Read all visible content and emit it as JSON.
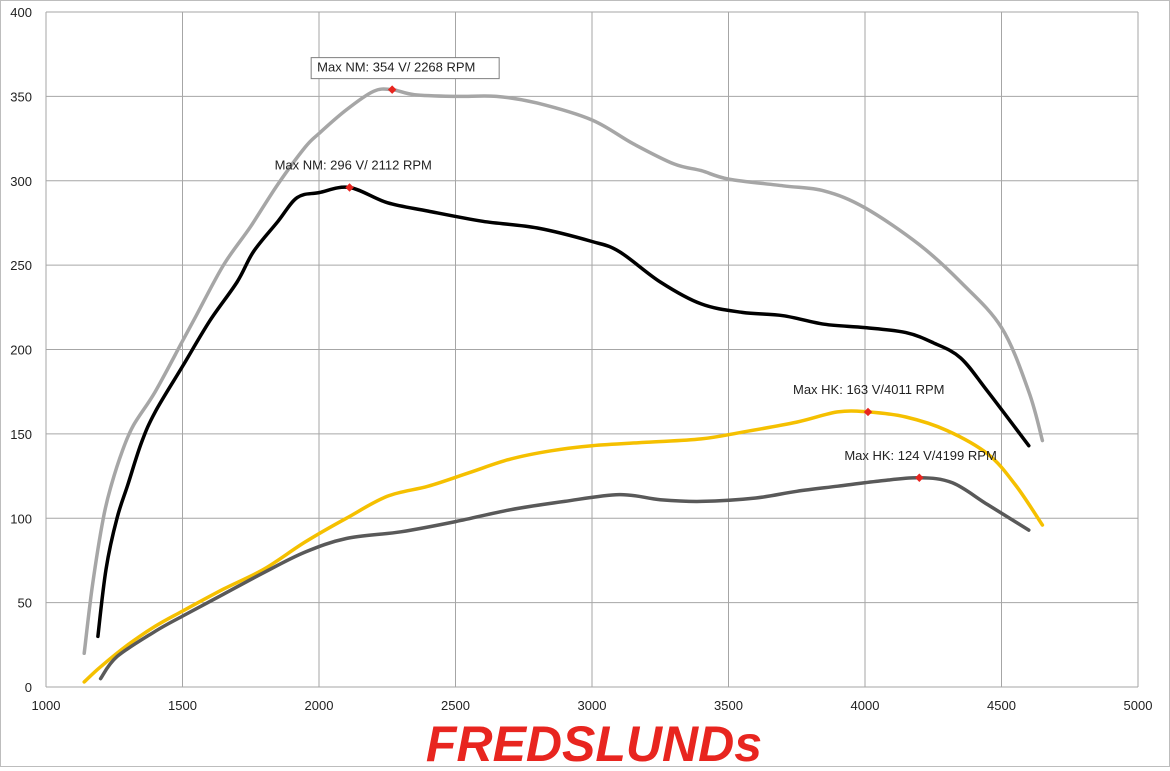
{
  "chart_data": {
    "type": "line",
    "title": "",
    "xlabel": "",
    "ylabel": "",
    "xlim": [
      1000,
      5000
    ],
    "ylim": [
      0,
      400
    ],
    "xticks": [
      1000,
      1500,
      2000,
      2500,
      3000,
      3500,
      4000,
      4500,
      5000
    ],
    "yticks": [
      0,
      50,
      100,
      150,
      200,
      250,
      300,
      350,
      400
    ],
    "grid": true,
    "legend": "none",
    "series": [
      {
        "color": "#a6a6a6",
        "points": [
          [
            1140,
            20
          ],
          [
            1170,
            60
          ],
          [
            1210,
            100
          ],
          [
            1240,
            120
          ],
          [
            1280,
            140
          ],
          [
            1320,
            155
          ],
          [
            1400,
            175
          ],
          [
            1500,
            205
          ],
          [
            1550,
            220
          ],
          [
            1650,
            250
          ],
          [
            1750,
            273
          ],
          [
            1850,
            298
          ],
          [
            1950,
            320
          ],
          [
            2000,
            328
          ],
          [
            2100,
            342
          ],
          [
            2200,
            353
          ],
          [
            2268,
            354
          ],
          [
            2350,
            351
          ],
          [
            2500,
            350
          ],
          [
            2650,
            350
          ],
          [
            2800,
            346
          ],
          [
            3000,
            336
          ],
          [
            3150,
            322
          ],
          [
            3300,
            310
          ],
          [
            3400,
            306
          ],
          [
            3500,
            301
          ],
          [
            3700,
            297
          ],
          [
            3850,
            294
          ],
          [
            4000,
            284
          ],
          [
            4200,
            262
          ],
          [
            4350,
            240
          ],
          [
            4500,
            213
          ],
          [
            4600,
            175
          ],
          [
            4650,
            146
          ]
        ]
      },
      {
        "color": "#000000",
        "points": [
          [
            1190,
            30
          ],
          [
            1220,
            70
          ],
          [
            1260,
            100
          ],
          [
            1300,
            120
          ],
          [
            1350,
            145
          ],
          [
            1400,
            163
          ],
          [
            1500,
            190
          ],
          [
            1600,
            217
          ],
          [
            1700,
            240
          ],
          [
            1760,
            258
          ],
          [
            1850,
            276
          ],
          [
            1920,
            290
          ],
          [
            2000,
            293
          ],
          [
            2112,
            296
          ],
          [
            2250,
            287
          ],
          [
            2400,
            282
          ],
          [
            2600,
            276
          ],
          [
            2800,
            272
          ],
          [
            3000,
            264
          ],
          [
            3100,
            258
          ],
          [
            3250,
            240
          ],
          [
            3400,
            227
          ],
          [
            3550,
            222
          ],
          [
            3700,
            220
          ],
          [
            3850,
            215
          ],
          [
            4000,
            213
          ],
          [
            4150,
            210
          ],
          [
            4250,
            204
          ],
          [
            4350,
            195
          ],
          [
            4450,
            175
          ],
          [
            4600,
            143
          ]
        ]
      },
      {
        "color": "#f5c000",
        "points": [
          [
            1140,
            3
          ],
          [
            1200,
            12
          ],
          [
            1300,
            25
          ],
          [
            1400,
            36
          ],
          [
            1500,
            45
          ],
          [
            1650,
            58
          ],
          [
            1800,
            70
          ],
          [
            1950,
            86
          ],
          [
            2100,
            100
          ],
          [
            2250,
            113
          ],
          [
            2400,
            119
          ],
          [
            2550,
            127
          ],
          [
            2700,
            135
          ],
          [
            2850,
            140
          ],
          [
            3000,
            143
          ],
          [
            3200,
            145
          ],
          [
            3400,
            147
          ],
          [
            3550,
            151
          ],
          [
            3750,
            157
          ],
          [
            3900,
            163
          ],
          [
            4011,
            163
          ],
          [
            4150,
            160
          ],
          [
            4300,
            152
          ],
          [
            4450,
            138
          ],
          [
            4550,
            120
          ],
          [
            4650,
            96
          ]
        ]
      },
      {
        "color": "#595959",
        "points": [
          [
            1200,
            5
          ],
          [
            1260,
            18
          ],
          [
            1400,
            33
          ],
          [
            1500,
            42
          ],
          [
            1650,
            55
          ],
          [
            1800,
            68
          ],
          [
            1950,
            80
          ],
          [
            2100,
            88
          ],
          [
            2300,
            92
          ],
          [
            2500,
            98
          ],
          [
            2700,
            105
          ],
          [
            2900,
            110
          ],
          [
            3100,
            114
          ],
          [
            3250,
            111
          ],
          [
            3400,
            110
          ],
          [
            3600,
            112
          ],
          [
            3750,
            116
          ],
          [
            3900,
            119
          ],
          [
            4050,
            122
          ],
          [
            4199,
            124
          ],
          [
            4320,
            121
          ],
          [
            4450,
            108
          ],
          [
            4600,
            93
          ]
        ]
      }
    ],
    "annotations": [
      {
        "text": "Max NM: 354 V/ 2268 RPM",
        "x": 2268,
        "y": 354,
        "boxed": true
      },
      {
        "text": "Max NM: 296 V/ 2112 RPM",
        "x": 2112,
        "y": 296,
        "boxed": false
      },
      {
        "text": "Max HK: 163 V/4011  RPM",
        "x": 4011,
        "y": 163,
        "boxed": false
      },
      {
        "text": "Max HK: 124 V/4199  RPM",
        "x": 4199,
        "y": 124,
        "boxed": false
      }
    ],
    "marker_color": "#e8251f",
    "logo": {
      "text": "FREDSLUNDs",
      "color": "#e8251f"
    }
  }
}
